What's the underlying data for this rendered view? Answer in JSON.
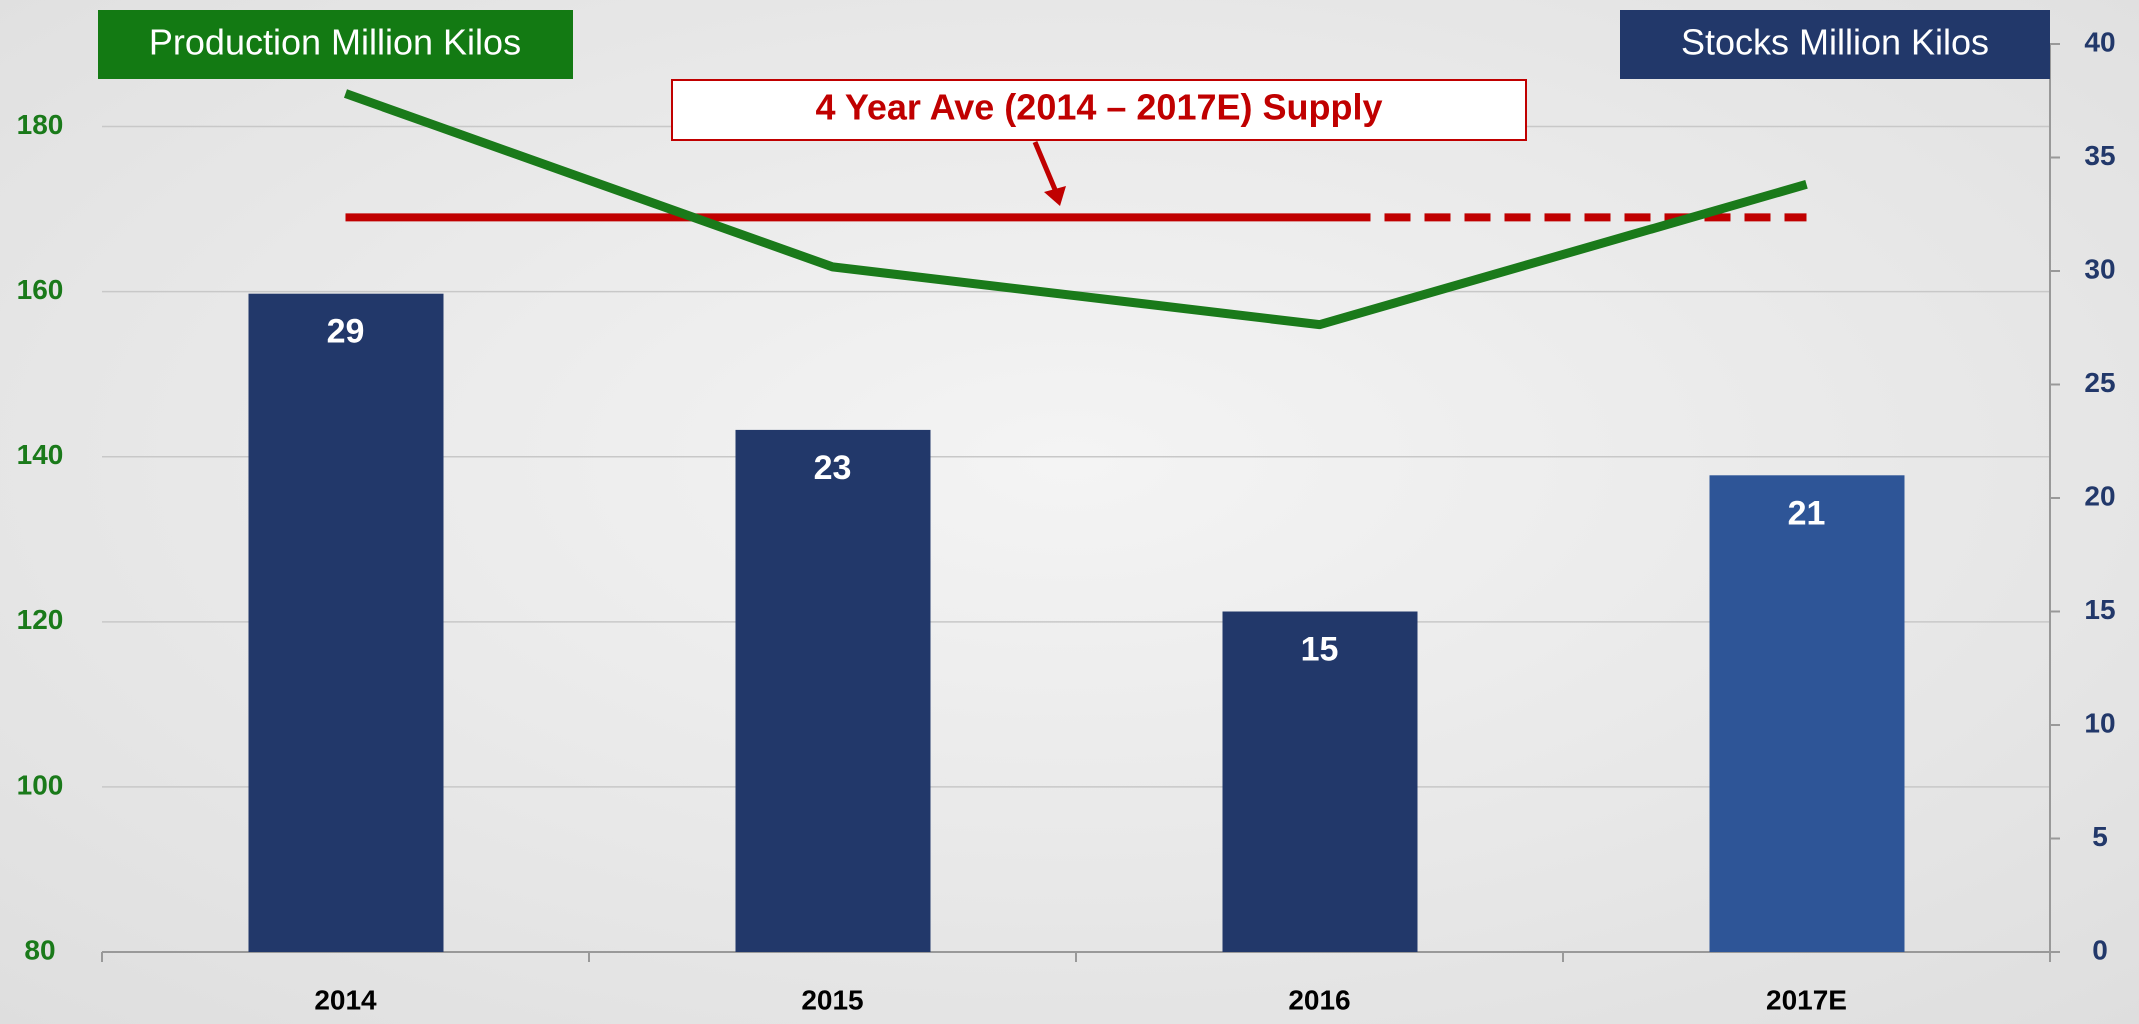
{
  "chart_data": {
    "type": "bar_line",
    "categories": [
      "2014",
      "2015",
      "2016",
      "2017E"
    ],
    "series": [
      {
        "name": "Stocks Million Kilos",
        "type": "bar",
        "axis": "y2",
        "color": "#22386a",
        "colors": [
          "#22386a",
          "#22386a",
          "#22386a",
          "#2e5597"
        ],
        "values": [
          29,
          23,
          15,
          21
        ]
      },
      {
        "name": "Production Million Kilos",
        "type": "line",
        "axis": "y",
        "color": "#1a7a1a",
        "values": [
          184,
          163,
          156,
          173
        ]
      }
    ],
    "annotation": {
      "text": "4 Year Ave (2014 – 2017E) Supply",
      "value": 169,
      "color": "#c00000",
      "dashed_from": "2016"
    },
    "ylim": [
      80,
      190
    ],
    "yticks": [
      80,
      100,
      120,
      140,
      160,
      180
    ],
    "y2lim": [
      0,
      40
    ],
    "y2ticks": [
      0,
      5,
      10,
      15,
      20,
      25,
      30,
      35,
      40
    ],
    "grid": true
  }
}
